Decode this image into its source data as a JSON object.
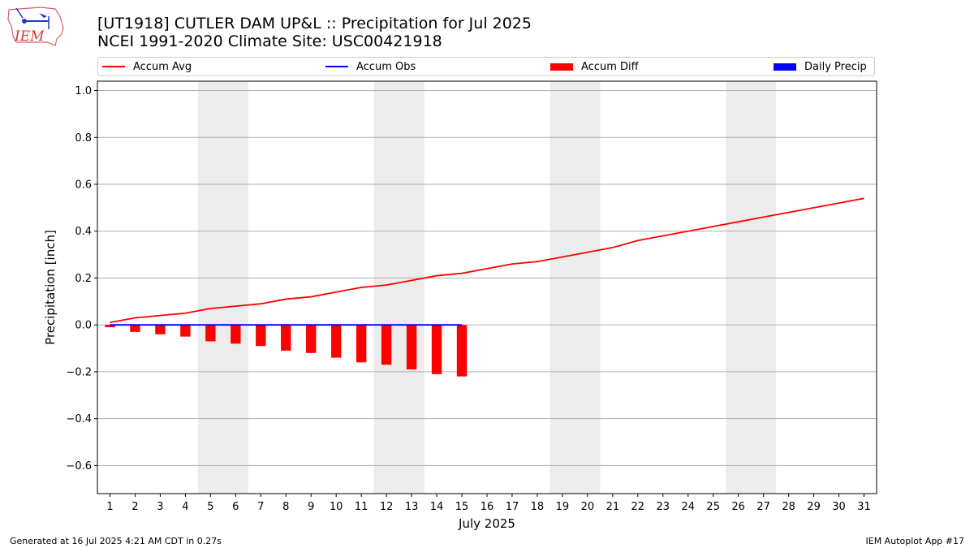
{
  "header": {
    "title_line1": "[UT1918] CUTLER DAM UP&L :: Precipitation for Jul 2025",
    "title_line2": "NCEI 1991-2020 Climate Site: USC00421918",
    "logo_text": "IEM"
  },
  "legend": [
    {
      "label": "Accum Avg",
      "color": "#ff0000",
      "kind": "line"
    },
    {
      "label": "Accum Obs",
      "color": "#0000ff",
      "kind": "line"
    },
    {
      "label": "Accum Diff",
      "color": "#ff0000",
      "kind": "patch"
    },
    {
      "label": "Daily Precip",
      "color": "#0000ff",
      "kind": "patch"
    }
  ],
  "footer": {
    "left": "Generated at 16 Jul 2025 4:21 AM CDT in 0.27s",
    "right": "IEM Autoplot App #17"
  },
  "chart_data": {
    "type": "line",
    "xlabel": "July 2025",
    "ylabel": "Precipitation [inch]",
    "ylim": [
      -0.72,
      1.04
    ],
    "xlim": [
      0.5,
      31.5
    ],
    "yticks": [
      -0.6,
      -0.4,
      -0.2,
      0.0,
      0.2,
      0.4,
      0.6,
      0.8,
      1.0
    ],
    "ytick_labels": [
      "−0.6",
      "−0.4",
      "−0.2",
      "0.0",
      "0.2",
      "0.4",
      "0.6",
      "0.8",
      "1.0"
    ],
    "x": [
      1,
      2,
      3,
      4,
      5,
      6,
      7,
      8,
      9,
      10,
      11,
      12,
      13,
      14,
      15,
      16,
      17,
      18,
      19,
      20,
      21,
      22,
      23,
      24,
      25,
      26,
      27,
      28,
      29,
      30,
      31
    ],
    "xtick_labels": [
      "1",
      "2",
      "3",
      "4",
      "5",
      "6",
      "7",
      "8",
      "9",
      "10",
      "11",
      "12",
      "13",
      "14",
      "15",
      "16",
      "17",
      "18",
      "19",
      "20",
      "21",
      "22",
      "23",
      "24",
      "25",
      "26",
      "27",
      "28",
      "29",
      "30",
      "31"
    ],
    "grid": "horizontal",
    "weekend_shading": [
      [
        4.5,
        6.5
      ],
      [
        11.5,
        13.5
      ],
      [
        18.5,
        20.5
      ],
      [
        25.5,
        27.5
      ]
    ],
    "shading_color": "#ececec",
    "series": [
      {
        "name": "Accum Avg",
        "type": "line",
        "color": "#ff0000",
        "x": [
          1,
          2,
          3,
          4,
          5,
          6,
          7,
          8,
          9,
          10,
          11,
          12,
          13,
          14,
          15,
          16,
          17,
          18,
          19,
          20,
          21,
          22,
          23,
          24,
          25,
          26,
          27,
          28,
          29,
          30,
          31
        ],
        "values": [
          0.01,
          0.03,
          0.04,
          0.05,
          0.07,
          0.08,
          0.09,
          0.11,
          0.12,
          0.14,
          0.16,
          0.17,
          0.19,
          0.21,
          0.22,
          0.24,
          0.26,
          0.27,
          0.29,
          0.31,
          0.33,
          0.36,
          0.38,
          0.4,
          0.42,
          0.44,
          0.46,
          0.48,
          0.5,
          0.52,
          0.54
        ]
      },
      {
        "name": "Accum Obs",
        "type": "line",
        "color": "#0000ff",
        "x": [
          1,
          2,
          3,
          4,
          5,
          6,
          7,
          8,
          9,
          10,
          11,
          12,
          13,
          14,
          15
        ],
        "values": [
          0,
          0,
          0,
          0,
          0,
          0,
          0,
          0,
          0,
          0,
          0,
          0,
          0,
          0,
          0
        ]
      },
      {
        "name": "Accum Diff",
        "type": "bar",
        "color": "#ff0000",
        "x": [
          1,
          2,
          3,
          4,
          5,
          6,
          7,
          8,
          9,
          10,
          11,
          12,
          13,
          14,
          15
        ],
        "values": [
          -0.01,
          -0.03,
          -0.04,
          -0.05,
          -0.07,
          -0.08,
          -0.09,
          -0.11,
          -0.12,
          -0.14,
          -0.16,
          -0.17,
          -0.19,
          -0.21,
          -0.22
        ]
      },
      {
        "name": "Daily Precip",
        "type": "bar",
        "color": "#0000ff",
        "x": [
          1,
          2,
          3,
          4,
          5,
          6,
          7,
          8,
          9,
          10,
          11,
          12,
          13,
          14,
          15
        ],
        "values": [
          0,
          0,
          0,
          0,
          0,
          0,
          0,
          0,
          0,
          0,
          0,
          0,
          0,
          0,
          0
        ]
      }
    ]
  }
}
